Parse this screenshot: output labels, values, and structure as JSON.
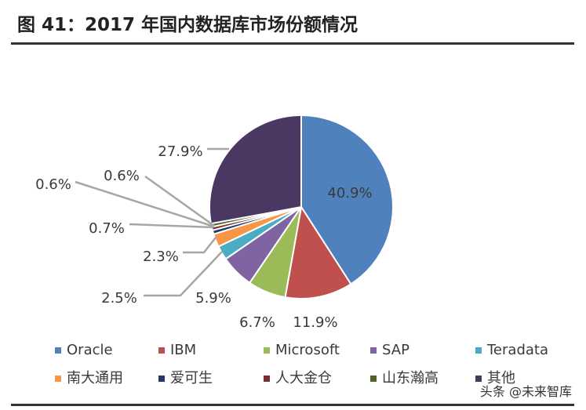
{
  "header": {
    "title": "图 41：2017 年国内数据库市场份额情况"
  },
  "watermark": "头条 @未来智库",
  "chart_data": {
    "type": "pie",
    "title": "",
    "start_angle_deg": 0,
    "direction": "clockwise",
    "slices": [
      {
        "name": "Oracle",
        "value": 40.9,
        "label": "40.9%",
        "color": "#4f81bd"
      },
      {
        "name": "IBM",
        "value": 11.9,
        "label": "11.9%",
        "color": "#c0504d"
      },
      {
        "name": "Microsoft",
        "value": 6.7,
        "label": "6.7%",
        "color": "#9bbb59"
      },
      {
        "name": "SAP",
        "value": 5.9,
        "label": "5.9%",
        "color": "#8064a2"
      },
      {
        "name": "Teradata",
        "value": 2.5,
        "label": "2.5%",
        "color": "#4bacc6"
      },
      {
        "name": "南大通用",
        "value": 2.3,
        "label": "2.3%",
        "color": "#f79646"
      },
      {
        "name": "爱可生",
        "value": 0.7,
        "label": "0.7%",
        "color": "#1f3864"
      },
      {
        "name": "人大金仓",
        "value": 0.6,
        "label": "0.6%",
        "color": "#7b2c2c"
      },
      {
        "name": "山东瀚高",
        "value": 0.6,
        "label": "0.6%",
        "color": "#4f6228"
      },
      {
        "name": "其他",
        "value": 27.9,
        "label": "27.9%",
        "color": "#4a3863"
      }
    ],
    "legend": {
      "position": "bottom",
      "rows": 2,
      "items": [
        "Oracle",
        "IBM",
        "Microsoft",
        "SAP",
        "Teradata",
        "南大通用",
        "爱可生",
        "人大金仓",
        "山东瀚高",
        "其他"
      ]
    }
  }
}
